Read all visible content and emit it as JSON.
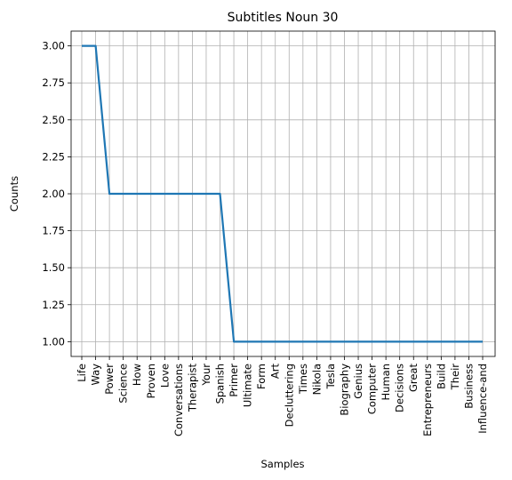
{
  "chart_data": {
    "type": "line",
    "title": "Subtitles Noun 30",
    "xlabel": "Samples",
    "ylabel": "Counts",
    "categories": [
      "Life",
      "Way",
      "Power",
      "Science",
      "How",
      "Proven",
      "Love",
      "Conversations",
      "Therapist",
      "Your",
      "Spanish",
      "Primer",
      "Ultimate",
      "Form",
      "Art",
      "Decluttering",
      "Times",
      "Nikola",
      "Tesla",
      "Biography",
      "Genius",
      "Computer",
      "Human",
      "Decisions",
      "Great",
      "Entrepreneurs",
      "Build",
      "Their",
      "Business",
      "Influence-and"
    ],
    "values": [
      3,
      3,
      2,
      2,
      2,
      2,
      2,
      2,
      2,
      2,
      2,
      1,
      1,
      1,
      1,
      1,
      1,
      1,
      1,
      1,
      1,
      1,
      1,
      1,
      1,
      1,
      1,
      1,
      1,
      1
    ],
    "yticks": [
      "1.00",
      "1.25",
      "1.50",
      "1.75",
      "2.00",
      "2.25",
      "2.50",
      "2.75",
      "3.00"
    ],
    "ylim": [
      0.9,
      3.1
    ],
    "grid": true,
    "color": "#1f77b4"
  }
}
